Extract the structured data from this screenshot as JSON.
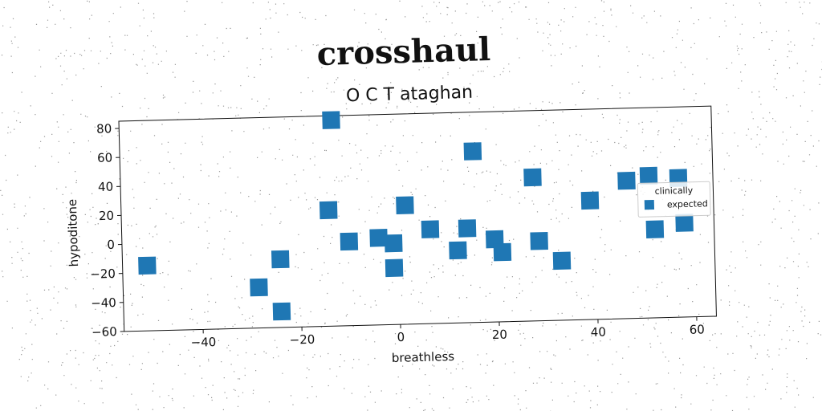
{
  "chart_data": {
    "type": "scatter",
    "title": "crosshaul",
    "subtitle": "O C T ataghan",
    "xlabel": "breathless",
    "ylabel": "hypoditone",
    "xlim": [
      -56,
      64
    ],
    "ylim": [
      -60,
      85
    ],
    "xticks": [
      -40,
      -20,
      0,
      20,
      40,
      60
    ],
    "yticks": [
      -60,
      -40,
      -20,
      0,
      20,
      40,
      60,
      80
    ],
    "xtick_labels": [
      "−40",
      "−20",
      "0",
      "20",
      "40",
      "60"
    ],
    "ytick_labels": [
      "−60",
      "−40",
      "−20",
      "0",
      "20",
      "40",
      "60",
      "80"
    ],
    "grid": false,
    "legend": {
      "placement": "right",
      "title": "clinically",
      "entries": [
        {
          "label": "expected",
          "color": "#1f77b4",
          "marker": "square"
        }
      ]
    },
    "series": [
      {
        "name": "expected",
        "color": "#1f77b4",
        "marker": "square",
        "points": [
          {
            "x": -51,
            "y": -15
          },
          {
            "x": -28.5,
            "y": -32
          },
          {
            "x": -24,
            "y": -13
          },
          {
            "x": -24,
            "y": -49
          },
          {
            "x": -14,
            "y": 20
          },
          {
            "x": -13,
            "y": 82
          },
          {
            "x": -10,
            "y": -2
          },
          {
            "x": -4,
            "y": 0
          },
          {
            "x": -1,
            "y": -4
          },
          {
            "x": -1,
            "y": -21
          },
          {
            "x": 1.5,
            "y": 22
          },
          {
            "x": 6.5,
            "y": 5
          },
          {
            "x": 12,
            "y": -10
          },
          {
            "x": 14,
            "y": 5
          },
          {
            "x": 15.5,
            "y": 58
          },
          {
            "x": 19.5,
            "y": -3
          },
          {
            "x": 21,
            "y": -12
          },
          {
            "x": 27.5,
            "y": 39
          },
          {
            "x": 28.5,
            "y": -5
          },
          {
            "x": 33,
            "y": -19
          },
          {
            "x": 39,
            "y": 22
          },
          {
            "x": 46.5,
            "y": 35
          },
          {
            "x": 51,
            "y": 38
          },
          {
            "x": 52,
            "y": 1
          },
          {
            "x": 57,
            "y": 36
          },
          {
            "x": 58,
            "y": 5
          }
        ]
      }
    ]
  }
}
